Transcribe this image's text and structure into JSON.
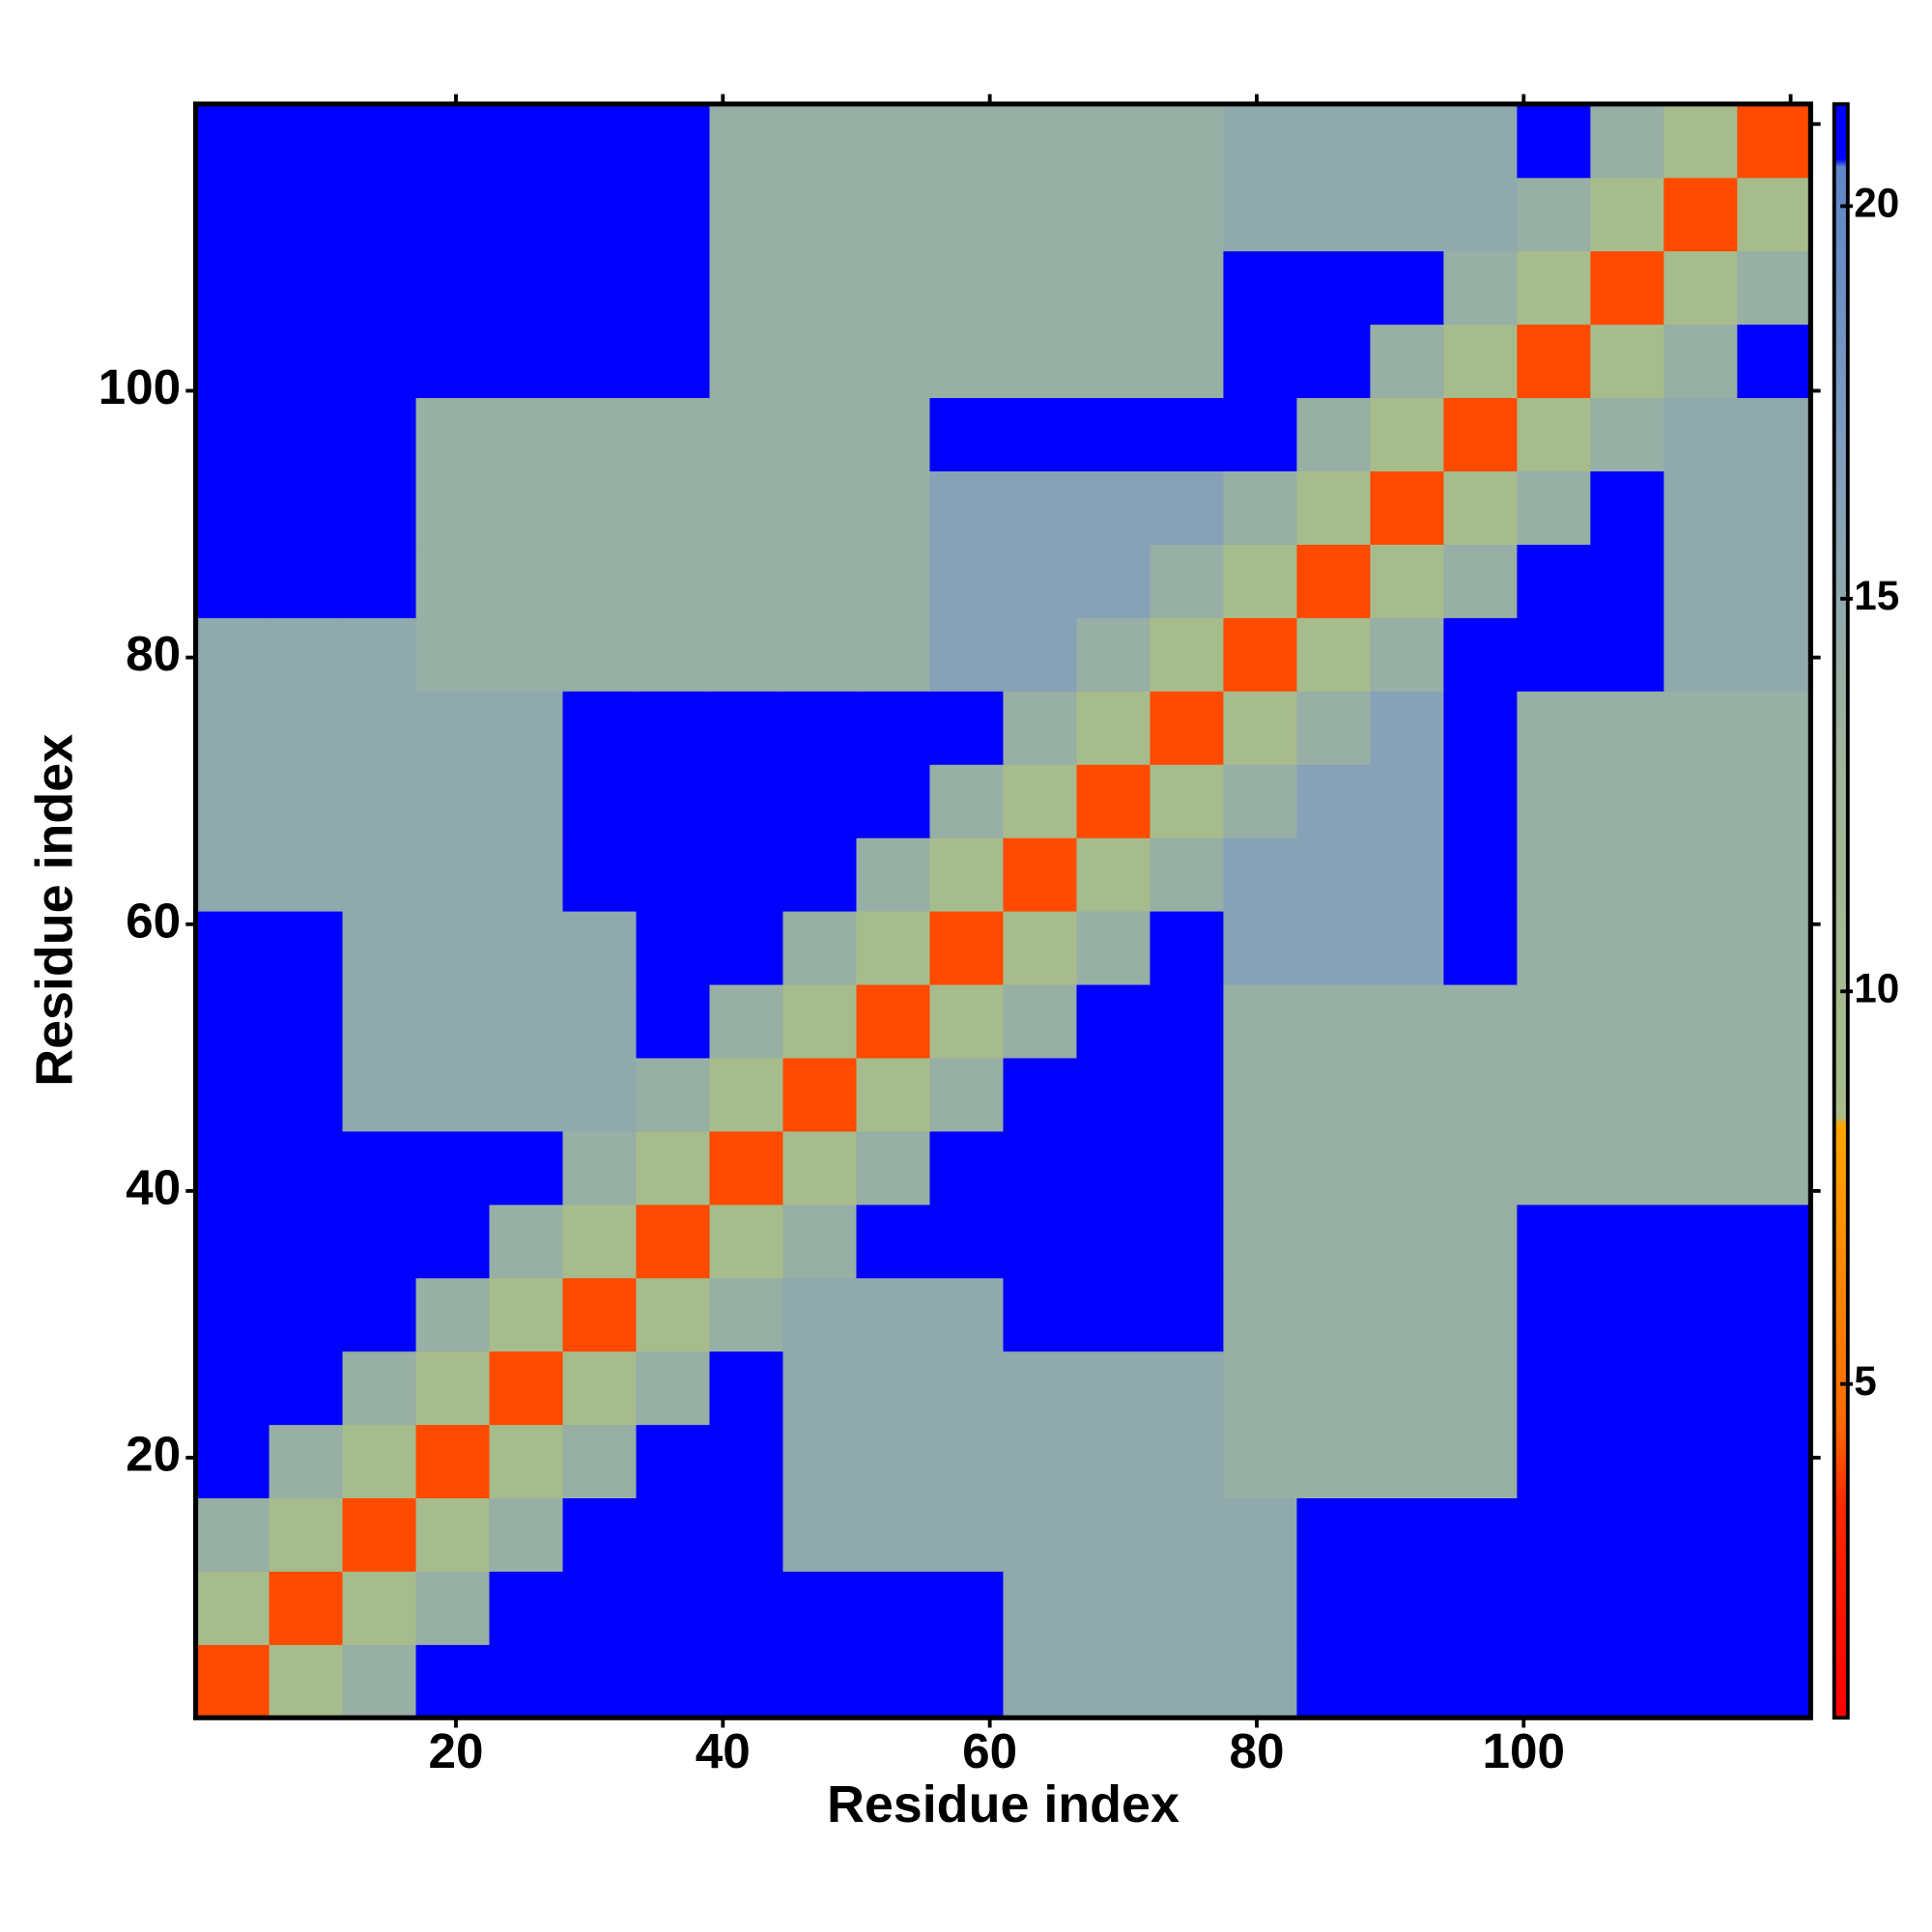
{
  "chart_data": {
    "type": "heatmap",
    "xlabel": "Residue index",
    "ylabel": "Residue index",
    "xlim": [
      0.5,
      121.5
    ],
    "ylim": [
      0.5,
      121.5
    ],
    "xticks": [
      20,
      40,
      60,
      80,
      100
    ],
    "yticks": [
      20,
      40,
      60,
      80,
      100
    ],
    "xticks_top": [
      20,
      40,
      60,
      80,
      100,
      120
    ],
    "yticks_right": [
      20,
      40,
      60,
      80,
      100,
      120
    ],
    "xbins": [
      0.5,
      6,
      11.5,
      17,
      22.5,
      28,
      33.5,
      39,
      44.5,
      50,
      55.5,
      61,
      66.5,
      72,
      77.5,
      83,
      88.5,
      94,
      99.5,
      105,
      110.5,
      116,
      121.5
    ],
    "ybins": [
      0.5,
      6,
      11.5,
      17,
      22.5,
      28,
      33.5,
      39,
      44.5,
      50,
      55.5,
      61,
      66.5,
      72,
      77.5,
      83,
      88.5,
      94,
      99.5,
      105,
      110.5,
      116,
      121.5
    ],
    "values": [
      [
        4,
        9,
        14,
        21,
        21,
        21,
        21,
        21,
        21,
        21,
        21,
        15,
        15,
        15,
        15,
        21,
        21,
        21,
        21,
        21,
        21,
        21
      ],
      [
        9,
        4,
        9,
        14,
        21,
        21,
        21,
        21,
        21,
        21,
        21,
        15,
        15,
        15,
        15,
        21,
        21,
        21,
        21,
        21,
        21,
        21
      ],
      [
        14,
        9,
        4,
        9,
        14,
        21,
        21,
        21,
        15,
        15,
        15,
        15,
        15,
        15,
        15,
        21,
        21,
        21,
        21,
        21,
        21,
        21
      ],
      [
        21,
        14,
        9,
        4,
        9,
        14,
        21,
        21,
        15,
        15,
        15,
        15,
        15,
        15,
        14,
        14,
        14,
        14,
        21,
        21,
        21,
        21
      ],
      [
        21,
        21,
        14,
        9,
        4,
        9,
        14,
        21,
        15,
        15,
        15,
        15,
        15,
        15,
        14,
        14,
        14,
        14,
        21,
        21,
        21,
        21
      ],
      [
        21,
        21,
        21,
        14,
        9,
        4,
        9,
        14,
        15,
        15,
        15,
        21,
        21,
        21,
        14,
        14,
        14,
        14,
        21,
        21,
        21,
        21
      ],
      [
        21,
        21,
        21,
        21,
        14,
        9,
        4,
        9,
        14,
        21,
        21,
        21,
        21,
        21,
        14,
        14,
        14,
        14,
        21,
        21,
        21,
        21
      ],
      [
        21,
        21,
        21,
        21,
        21,
        14,
        9,
        4,
        9,
        14,
        21,
        21,
        21,
        21,
        14,
        14,
        14,
        14,
        14,
        14,
        14,
        14
      ],
      [
        21,
        21,
        15,
        15,
        15,
        15,
        14,
        9,
        4,
        9,
        14,
        21,
        21,
        21,
        14,
        14,
        14,
        14,
        14,
        14,
        14,
        14
      ],
      [
        21,
        21,
        15,
        15,
        15,
        15,
        21,
        14,
        9,
        4,
        9,
        14,
        21,
        21,
        14,
        14,
        14,
        14,
        14,
        14,
        14,
        14
      ],
      [
        21,
        21,
        15,
        15,
        15,
        15,
        21,
        21,
        14,
        9,
        4,
        9,
        14,
        21,
        16,
        16,
        16,
        21,
        14,
        14,
        14,
        14
      ],
      [
        15,
        15,
        15,
        15,
        15,
        21,
        21,
        21,
        21,
        14,
        9,
        4,
        9,
        14,
        16,
        16,
        16,
        21,
        14,
        14,
        14,
        14
      ],
      [
        15,
        15,
        15,
        15,
        15,
        21,
        21,
        21,
        21,
        21,
        14,
        9,
        4,
        9,
        14,
        16,
        16,
        21,
        14,
        14,
        14,
        14
      ],
      [
        15,
        15,
        15,
        15,
        15,
        21,
        21,
        21,
        21,
        21,
        21,
        14,
        9,
        4,
        9,
        14,
        16,
        21,
        14,
        14,
        14,
        14
      ],
      [
        15,
        15,
        15,
        14,
        14,
        14,
        14,
        14,
        14,
        14,
        16,
        16,
        14,
        9,
        4,
        9,
        14,
        21,
        21,
        21,
        15,
        15
      ],
      [
        21,
        21,
        21,
        14,
        14,
        14,
        14,
        14,
        14,
        14,
        16,
        16,
        16,
        14,
        9,
        4,
        9,
        14,
        21,
        21,
        15,
        15
      ],
      [
        21,
        21,
        21,
        14,
        14,
        14,
        14,
        14,
        14,
        14,
        16,
        16,
        16,
        16,
        14,
        9,
        4,
        9,
        14,
        21,
        15,
        15
      ],
      [
        21,
        21,
        21,
        14,
        14,
        14,
        14,
        14,
        14,
        14,
        21,
        21,
        21,
        21,
        21,
        14,
        9,
        4,
        9,
        14,
        15,
        15
      ],
      [
        21,
        21,
        21,
        21,
        21,
        21,
        21,
        14,
        14,
        14,
        14,
        14,
        14,
        14,
        21,
        21,
        14,
        9,
        4,
        9,
        14,
        21
      ],
      [
        21,
        21,
        21,
        21,
        21,
        21,
        21,
        14,
        14,
        14,
        14,
        14,
        14,
        14,
        21,
        21,
        21,
        14,
        9,
        4,
        9,
        14
      ],
      [
        21,
        21,
        21,
        21,
        21,
        21,
        21,
        14,
        14,
        14,
        14,
        14,
        14,
        14,
        15,
        15,
        15,
        15,
        14,
        9,
        4,
        9
      ],
      [
        21,
        21,
        21,
        21,
        21,
        21,
        21,
        14,
        14,
        14,
        14,
        14,
        14,
        14,
        15,
        15,
        15,
        15,
        21,
        14,
        9,
        4
      ]
    ],
    "clim": [
      0.75,
      21.3
    ],
    "cticks": [
      5,
      10,
      15,
      20
    ],
    "colorscale": [
      [
        0.75,
        "#ff0000"
      ],
      [
        3.5,
        "#ff2a00"
      ],
      [
        4.5,
        "#ff6a00"
      ],
      [
        8.3,
        "#ffa500"
      ],
      [
        8.4,
        "#a8bd8a"
      ],
      [
        13,
        "#9fb59a"
      ],
      [
        17,
        "#7f9cc0"
      ],
      [
        20.5,
        "#5e86c8"
      ],
      [
        20.6,
        "#0000ff"
      ],
      [
        21.3,
        "#0000ff"
      ]
    ]
  }
}
